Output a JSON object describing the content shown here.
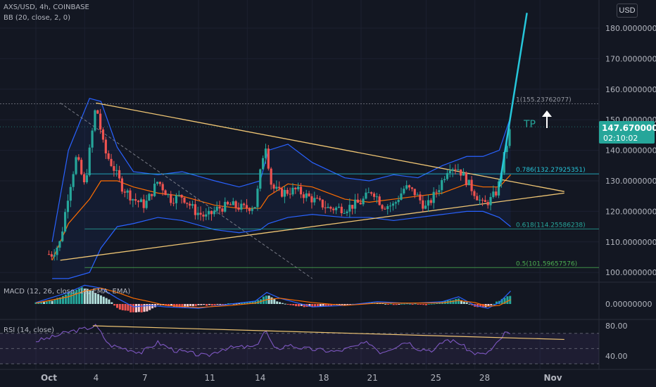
{
  "header": {
    "symbol": "AXS/USD, 4h, COINBASE",
    "indicator": "BB (20, close, 2, 0)",
    "currency_button": "USD"
  },
  "price_tag": {
    "price": "147.67000000",
    "countdown": "02:10:02"
  },
  "annotations": {
    "tp": "TP"
  },
  "colors": {
    "background": "#131722",
    "up": "#26a69a",
    "down": "#ef5350",
    "bb_band": "#2962ff",
    "bb_basis": "#ff6d00",
    "trendline": "#f0c674",
    "tp_arrow": "#ffffff",
    "projection": "#26c6da",
    "macd_line": "#2962ff",
    "signal_line": "#ff6d00",
    "rsi_line": "#7e57c2"
  },
  "chart_data": [
    {
      "type": "candlestick",
      "title": "AXS/USD, 4h, COINBASE",
      "ylim": [
        96,
        186
      ],
      "y_ticks": [
        "180.00000000",
        "170.00000000",
        "160.00000000",
        "150.00000000",
        "140.00000000",
        "130.00000000",
        "120.00000000",
        "110.00000000",
        "100.00000000"
      ],
      "x_ticks": [
        "Oct",
        "4",
        "7",
        "11",
        "14",
        "18",
        "21",
        "25",
        "28",
        "Nov"
      ],
      "current_price": 147.67,
      "fibonacci": [
        {
          "label": "1(155.23762077)",
          "value": 155.23762077
        },
        {
          "label": "0.786(132.27925351)",
          "value": 132.27925351
        },
        {
          "label": "0.618(114.25586238)",
          "value": 114.25586238
        },
        {
          "label": "0.5(101.59657576)",
          "value": 101.59657576
        }
      ],
      "price_path_by_day": [
        [
          1,
          106
        ],
        [
          1.5,
          110
        ],
        [
          2,
          126
        ],
        [
          2.5,
          138
        ],
        [
          3,
          128
        ],
        [
          3.7,
          155.2
        ],
        [
          4.2,
          140
        ],
        [
          4.8,
          134
        ],
        [
          5.3,
          128
        ],
        [
          6,
          124
        ],
        [
          6.7,
          122
        ],
        [
          7.5,
          130
        ],
        [
          8.3,
          124
        ],
        [
          9,
          125
        ],
        [
          9.8,
          120
        ],
        [
          10.5,
          118
        ],
        [
          11.2,
          121
        ],
        [
          12,
          122
        ],
        [
          12.8,
          121
        ],
        [
          13.5,
          122
        ],
        [
          14.1,
          143
        ],
        [
          14.5,
          128
        ],
        [
          15,
          126
        ],
        [
          16,
          127
        ],
        [
          17,
          124
        ],
        [
          18,
          121
        ],
        [
          19,
          121
        ],
        [
          20,
          123
        ],
        [
          20.7,
          127
        ],
        [
          21.3,
          122
        ],
        [
          22,
          122
        ],
        [
          22.7,
          128
        ],
        [
          23.3,
          126
        ],
        [
          24,
          121
        ],
        [
          24.8,
          128
        ],
        [
          25.4,
          135
        ],
        [
          26,
          134
        ],
        [
          26.6,
          129
        ],
        [
          27,
          126
        ],
        [
          27.5,
          122
        ],
        [
          28,
          124
        ],
        [
          28.4,
          127
        ],
        [
          28.8,
          138
        ],
        [
          29.2,
          147.67
        ]
      ],
      "bb_upper_path": [
        [
          1,
          110
        ],
        [
          2,
          140
        ],
        [
          3.3,
          157
        ],
        [
          4,
          156
        ],
        [
          5,
          141
        ],
        [
          6,
          133
        ],
        [
          7.5,
          132
        ],
        [
          9,
          133
        ],
        [
          11,
          130
        ],
        [
          12.5,
          128
        ],
        [
          13.8,
          130
        ],
        [
          14.3,
          140
        ],
        [
          15.5,
          142
        ],
        [
          17,
          136
        ],
        [
          19,
          131
        ],
        [
          20.5,
          130
        ],
        [
          22,
          132
        ],
        [
          23.5,
          131
        ],
        [
          25,
          135
        ],
        [
          26.5,
          138
        ],
        [
          27.5,
          138
        ],
        [
          28.5,
          140
        ],
        [
          29.2,
          151
        ]
      ],
      "bb_lower_path": [
        [
          1,
          98
        ],
        [
          2,
          98
        ],
        [
          3.3,
          100
        ],
        [
          4,
          108
        ],
        [
          5,
          115
        ],
        [
          6,
          116
        ],
        [
          7.5,
          118
        ],
        [
          9,
          117
        ],
        [
          11,
          114
        ],
        [
          12.5,
          113
        ],
        [
          13.8,
          114
        ],
        [
          14.3,
          116
        ],
        [
          15.5,
          118
        ],
        [
          17,
          119
        ],
        [
          19,
          118
        ],
        [
          20.5,
          118
        ],
        [
          22,
          117
        ],
        [
          23.5,
          118
        ],
        [
          25,
          119
        ],
        [
          26.5,
          120
        ],
        [
          27.5,
          120
        ],
        [
          28.5,
          118
        ],
        [
          29.2,
          115
        ]
      ],
      "bb_basis_path": [
        [
          1,
          104
        ],
        [
          2,
          116
        ],
        [
          3.3,
          124
        ],
        [
          4,
          130
        ],
        [
          5,
          130
        ],
        [
          6,
          128
        ],
        [
          7.5,
          126
        ],
        [
          9,
          125
        ],
        [
          11,
          122
        ],
        [
          12.5,
          121
        ],
        [
          13.8,
          121
        ],
        [
          14.3,
          125
        ],
        [
          15.5,
          129
        ],
        [
          17,
          128
        ],
        [
          19,
          124
        ],
        [
          20.5,
          123
        ],
        [
          22,
          124
        ],
        [
          23.5,
          125
        ],
        [
          25,
          126
        ],
        [
          26.5,
          129
        ],
        [
          27.5,
          128
        ],
        [
          28.5,
          128
        ],
        [
          29.2,
          132
        ]
      ],
      "trendlines": [
        {
          "from": [
            3.7,
            155.5
          ],
          "to": [
            32.5,
            126.5
          ]
        },
        {
          "from": [
            1.5,
            104
          ],
          "to": [
            32.5,
            126
          ]
        },
        {
          "from": [
            1.5,
            155.5
          ],
          "to": [
            17,
            98
          ],
          "dashed": true
        }
      ],
      "projection_path": [
        [
          28.5,
          128
        ],
        [
          30.2,
          185
        ]
      ]
    },
    {
      "type": "bar",
      "title": "MACD (12, 26, close, 12, EMA, EMA)",
      "ylim": [
        -6,
        6
      ],
      "y_ticks": [
        "0.00000000"
      ],
      "histogram_path_by_day": [
        [
          0,
          0.5
        ],
        [
          1,
          1.2
        ],
        [
          2,
          3.5
        ],
        [
          2.8,
          5.8
        ],
        [
          3.5,
          4.5
        ],
        [
          4,
          3
        ],
        [
          4.5,
          1.5
        ],
        [
          5,
          -1.5
        ],
        [
          6,
          -3
        ],
        [
          6.8,
          -2.8
        ],
        [
          7.5,
          -0.5
        ],
        [
          8.3,
          -0.8
        ],
        [
          9,
          -1.2
        ],
        [
          10,
          -0.5
        ],
        [
          11,
          -0.4
        ],
        [
          12,
          0.2
        ],
        [
          13,
          0.5
        ],
        [
          13.8,
          1.5
        ],
        [
          14.2,
          3.2
        ],
        [
          15,
          0.5
        ],
        [
          16,
          -0.8
        ],
        [
          17,
          -1
        ],
        [
          18,
          -0.6
        ],
        [
          19,
          -0.4
        ],
        [
          20,
          0.1
        ],
        [
          21,
          0.6
        ],
        [
          22,
          -0.2
        ],
        [
          23,
          0.1
        ],
        [
          24,
          -0.3
        ],
        [
          25,
          0.8
        ],
        [
          26,
          1.8
        ],
        [
          27,
          -0.8
        ],
        [
          27.6,
          -1.2
        ],
        [
          28,
          -0.4
        ],
        [
          28.6,
          1.5
        ],
        [
          29.2,
          3
        ]
      ],
      "macd_path": [
        [
          0,
          0.5
        ],
        [
          2,
          4
        ],
        [
          3,
          6.5
        ],
        [
          4,
          5.5
        ],
        [
          5,
          2
        ],
        [
          6,
          -1
        ],
        [
          7,
          -0.5
        ],
        [
          8,
          -1
        ],
        [
          10,
          -1.5
        ],
        [
          12,
          0
        ],
        [
          13.5,
          1
        ],
        [
          14.2,
          4
        ],
        [
          15,
          2
        ],
        [
          17,
          -1
        ],
        [
          19,
          -0.5
        ],
        [
          21,
          0.8
        ],
        [
          23,
          0.2
        ],
        [
          25,
          0.8
        ],
        [
          26,
          2.5
        ],
        [
          27,
          -0.5
        ],
        [
          27.8,
          -1.5
        ],
        [
          28.5,
          0.5
        ],
        [
          29.2,
          4.5
        ]
      ],
      "signal_path": [
        [
          0,
          0.3
        ],
        [
          2,
          2.5
        ],
        [
          3,
          4.5
        ],
        [
          4,
          5.5
        ],
        [
          5,
          4
        ],
        [
          6,
          2
        ],
        [
          7,
          0.8
        ],
        [
          8,
          -0.5
        ],
        [
          10,
          -1.2
        ],
        [
          12,
          -0.5
        ],
        [
          13.5,
          0.3
        ],
        [
          14.2,
          1.5
        ],
        [
          15,
          2
        ],
        [
          17,
          0.5
        ],
        [
          19,
          -0.5
        ],
        [
          21,
          0.3
        ],
        [
          23,
          0.3
        ],
        [
          25,
          0.4
        ],
        [
          26,
          1.2
        ],
        [
          27,
          0.5
        ],
        [
          27.8,
          -0.8
        ],
        [
          28.5,
          -0.5
        ],
        [
          29.2,
          1.5
        ]
      ]
    },
    {
      "type": "line",
      "title": "RSI (14, close)",
      "ylim": [
        30,
        85
      ],
      "y_ticks": [
        "80.00",
        "40.00"
      ],
      "upper_band": 70,
      "middle_band": 50,
      "lower_band": 30,
      "rsi_path_by_day": [
        [
          0,
          60
        ],
        [
          1,
          65
        ],
        [
          2,
          72
        ],
        [
          3,
          76
        ],
        [
          3.7,
          80
        ],
        [
          4.5,
          55
        ],
        [
          5.5,
          50
        ],
        [
          6.5,
          45
        ],
        [
          7.5,
          58
        ],
        [
          8.5,
          48
        ],
        [
          9.5,
          44
        ],
        [
          10.5,
          40
        ],
        [
          11.5,
          50
        ],
        [
          12.5,
          52
        ],
        [
          13.5,
          52
        ],
        [
          14.1,
          75
        ],
        [
          14.7,
          48
        ],
        [
          15.5,
          55
        ],
        [
          16.5,
          50
        ],
        [
          17.5,
          48
        ],
        [
          18.5,
          46
        ],
        [
          19.5,
          52
        ],
        [
          20.5,
          58
        ],
        [
          21.2,
          45
        ],
        [
          22,
          52
        ],
        [
          22.8,
          60
        ],
        [
          23.5,
          50
        ],
        [
          24.5,
          48
        ],
        [
          25.2,
          62
        ],
        [
          26,
          58
        ],
        [
          26.8,
          45
        ],
        [
          27.5,
          42
        ],
        [
          28,
          48
        ],
        [
          28.5,
          60
        ],
        [
          28.9,
          72
        ],
        [
          29.2,
          68
        ]
      ],
      "trendline": {
        "from": [
          3.5,
          80
        ],
        "to": [
          32.5,
          62
        ]
      }
    }
  ]
}
